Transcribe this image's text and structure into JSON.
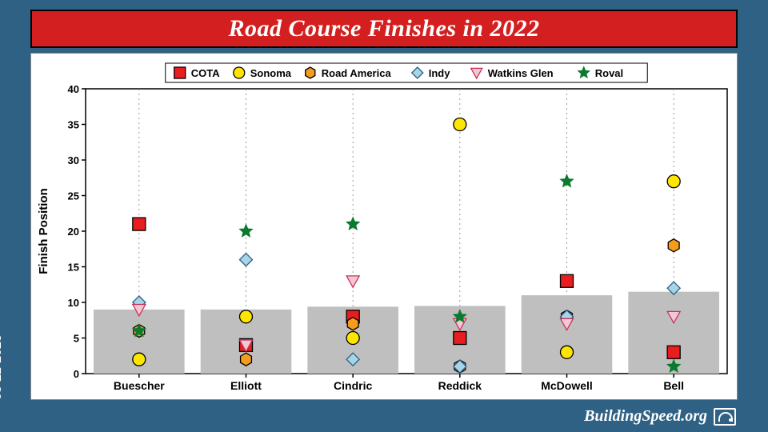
{
  "frame": {
    "background_color": "#2e6183",
    "title_bar_color": "#d31f1f",
    "title_text_color": "#ffffff"
  },
  "title": "Road Course Finishes in 2022",
  "date": "03-22-2023",
  "footer_site": "BuildingSpeed.org",
  "chart": {
    "type": "scatter-with-bars",
    "background_color": "#ffffff",
    "grid_color": "#7f7f7f",
    "bar_color": "#bfbfbf",
    "y_axis": {
      "label": "Finish Position",
      "min": 0,
      "max": 40,
      "tick_step": 5
    },
    "drivers": [
      "Buescher",
      "Elliott",
      "Cindric",
      "Reddick",
      "McDowell",
      "Bell"
    ],
    "bar_values": [
      9.0,
      9.0,
      9.4,
      9.5,
      11.0,
      11.5
    ],
    "series": [
      {
        "name": "COTA",
        "marker": "square",
        "fill": "#e81e1e",
        "stroke": "#000000"
      },
      {
        "name": "Sonoma",
        "marker": "circle",
        "fill": "#ffe600",
        "stroke": "#000000"
      },
      {
        "name": "Road America",
        "marker": "hexagon",
        "fill": "#f59b1e",
        "stroke": "#000000"
      },
      {
        "name": "Indy",
        "marker": "diamond",
        "fill": "#a8d4e8",
        "stroke": "#2b5f80"
      },
      {
        "name": "Watkins Glen",
        "marker": "tri-down",
        "fill": "#f5c6d3",
        "stroke": "#c0355a"
      },
      {
        "name": "Roval",
        "marker": "star",
        "fill": "#0b7a2e",
        "stroke": "#0b7a2e"
      }
    ],
    "points": {
      "Buescher": {
        "COTA": 21,
        "Sonoma": 2,
        "Road America": 6,
        "Indy": 10,
        "Watkins Glen": 9,
        "Roval": 6
      },
      "Elliott": {
        "COTA": 4,
        "Sonoma": 8,
        "Road America": 2,
        "Indy": 16,
        "Watkins Glen": 4,
        "Roval": 20
      },
      "Cindric": {
        "COTA": 8,
        "Sonoma": 5,
        "Road America": 7,
        "Indy": 2,
        "Watkins Glen": 13,
        "Roval": 21
      },
      "Reddick": {
        "COTA": 5,
        "Sonoma": 35,
        "Road America": 1,
        "Indy": 1,
        "Watkins Glen": 7,
        "Roval": 8
      },
      "McDowell": {
        "COTA": 13,
        "Sonoma": 3,
        "Road America": 8,
        "Indy": 8,
        "Watkins Glen": 7,
        "Roval": 27
      },
      "Bell": {
        "COTA": 3,
        "Sonoma": 27,
        "Road America": 18,
        "Indy": 12,
        "Watkins Glen": 8,
        "Roval": 1
      }
    },
    "marker_size": 8,
    "legend_position": "top"
  }
}
